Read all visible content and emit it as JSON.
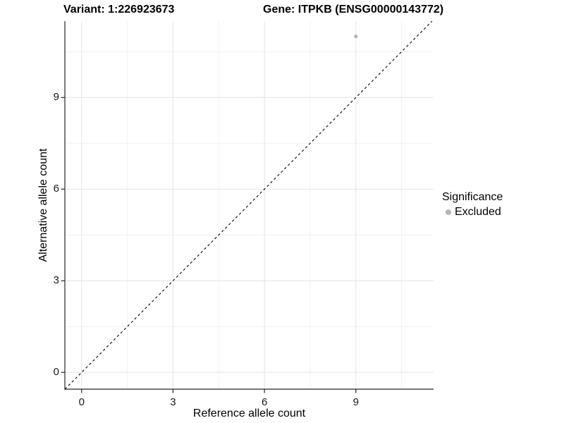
{
  "chart_data": {
    "type": "scatter",
    "titles": {
      "left": "Variant: 1:226923673",
      "right": "Gene: ITPKB (ENSG00000143772)"
    },
    "xlabel": "Reference allele count",
    "ylabel": "Alternative allele count",
    "xlim": [
      -0.55,
      11.55
    ],
    "ylim": [
      -0.55,
      11.5
    ],
    "x_ticks": [
      0,
      3,
      6,
      9
    ],
    "y_ticks": [
      0,
      3,
      6,
      9
    ],
    "x_minor_gridlines": [
      1.5,
      4.5,
      7.5,
      10.5
    ],
    "y_minor_gridlines": [
      1.5,
      4.5,
      7.5,
      10.5
    ],
    "grid": "major+minor",
    "series": [
      {
        "name": "Excluded",
        "color": "#b5b5b5",
        "points": [
          {
            "x": 9,
            "y": 11
          }
        ]
      }
    ],
    "reference_line": {
      "equation": "y = x",
      "style": "dashed",
      "color": "#000000"
    },
    "legend": {
      "position": "right",
      "title": "Significance",
      "items": [
        {
          "label": "Excluded",
          "color": "#b5b5b5"
        }
      ]
    },
    "colors": {
      "grid_major": "#e4e4e4",
      "grid_minor": "#f1f1f1",
      "axis_line": "#262626",
      "tick_text": "#1a1a1a",
      "point": "#b5b5b5"
    }
  }
}
